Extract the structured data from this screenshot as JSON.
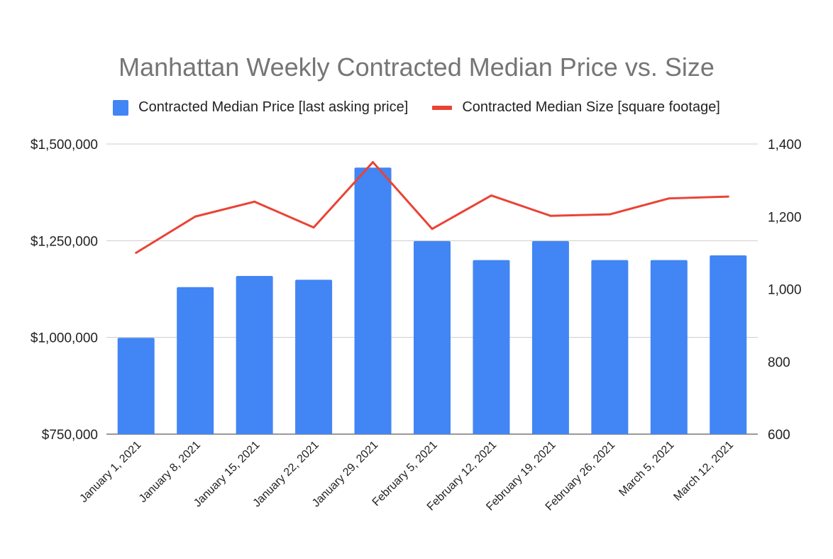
{
  "chart_data": {
    "type": "bar+line",
    "title": "Manhattan Weekly Contracted Median Price vs. Size",
    "legend_position": "top",
    "grid": true,
    "categories": [
      "January 1, 2021",
      "January 8, 2021",
      "January 15, 2021",
      "January 22, 2021",
      "January 29, 2021",
      "February 5, 2021",
      "February 12, 2021",
      "February 19, 2021",
      "February 26, 2021",
      "March 5, 2021",
      "March 12, 2021"
    ],
    "series": [
      {
        "name": "Contracted Median Price [last asking price]",
        "type": "bar",
        "axis": "left",
        "color": "#4285F4",
        "values": [
          999000,
          1130000,
          1159000,
          1149000,
          1439000,
          1249000,
          1200000,
          1249000,
          1200000,
          1200000,
          1212000
        ]
      },
      {
        "name": "Contracted Median Size [square footage]",
        "type": "line",
        "axis": "right",
        "color": "#EA4335",
        "values": [
          1100,
          1200,
          1241,
          1170,
          1350,
          1166,
          1258,
          1202,
          1206,
          1250,
          1255
        ]
      }
    ],
    "y_left": {
      "min": 750000,
      "max": 1500000,
      "ticks": [
        "$750,000",
        "$1,000,000",
        "$1,250,000",
        "$1,500,000"
      ]
    },
    "y_right": {
      "min": 600,
      "max": 1400,
      "ticks": [
        "600",
        "800",
        "1,000",
        "1,200",
        "1,400"
      ]
    }
  }
}
